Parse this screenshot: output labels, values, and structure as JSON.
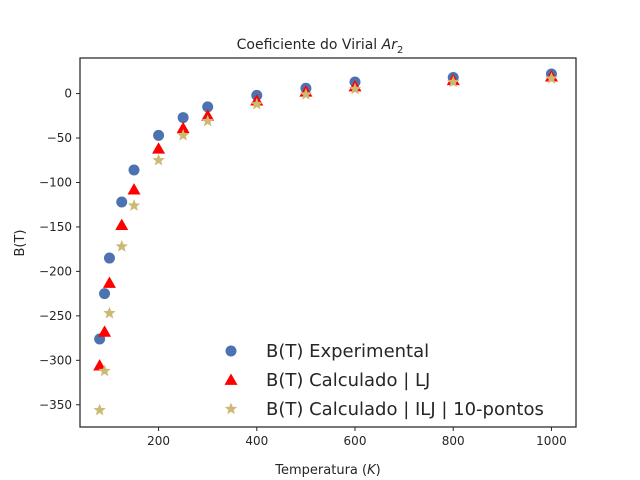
{
  "chart_data": {
    "type": "scatter",
    "title": "Coeficiente do Virial",
    "title_math": "Ar",
    "title_sub": "2",
    "xlabel": "Temperatura (",
    "xlabel_unit": "K",
    "xlabel_close": ")",
    "ylabel": "B(T)",
    "xlim": [
      40,
      1050
    ],
    "ylim": [
      -375,
      40
    ],
    "xticks": [
      200,
      400,
      600,
      800,
      1000
    ],
    "yticks": [
      0,
      -50,
      -100,
      -150,
      -200,
      -250,
      -300,
      -350
    ],
    "grid": false,
    "legend_position": "lower-right",
    "series": [
      {
        "name": "B(T) Experimental",
        "marker": "circle",
        "color": "#4c72b0",
        "x": [
          80,
          90,
          100,
          125,
          150,
          200,
          250,
          300,
          400,
          500,
          600,
          800,
          1000
        ],
        "y": [
          -276,
          -225,
          -185,
          -122,
          -86,
          -47,
          -27,
          -15,
          -2,
          6,
          13,
          18,
          22
        ]
      },
      {
        "name": "B(T) Calculado | LJ",
        "marker": "triangle",
        "color": "#ff0000",
        "x": [
          80,
          90,
          100,
          125,
          150,
          200,
          250,
          300,
          400,
          500,
          600,
          800,
          1000
        ],
        "y": [
          -306,
          -268,
          -213,
          -148,
          -108,
          -62,
          -39,
          -25,
          -8,
          2,
          8,
          15,
          19
        ]
      },
      {
        "name": "B(T) Calculado | ILJ | 10-pontos",
        "marker": "star",
        "color": "#ccb974",
        "x": [
          80,
          90,
          100,
          125,
          150,
          200,
          250,
          300,
          400,
          500,
          600,
          800,
          1000
        ],
        "y": [
          -356,
          -312,
          -247,
          -172,
          -126,
          -75,
          -47,
          -31,
          -12,
          -1,
          5,
          13,
          17
        ]
      }
    ]
  }
}
